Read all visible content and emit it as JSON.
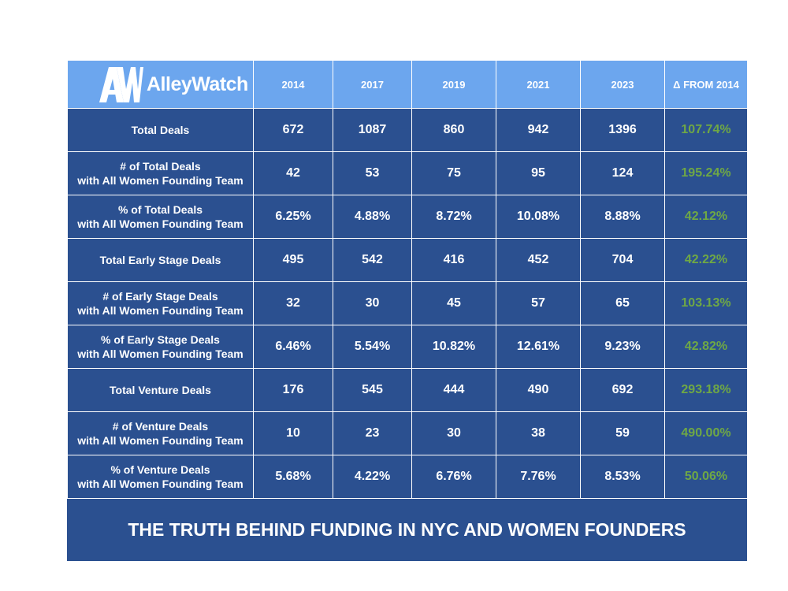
{
  "brand": {
    "logo_monogram": "AW",
    "logo_text": "AlleyWatch"
  },
  "colors": {
    "header_bg": "#6ca6ee",
    "body_bg": "#2b5090",
    "delta_text": "#6fa845",
    "text": "#ffffff"
  },
  "chart_data": {
    "type": "table",
    "title": "THE TRUTH BEHIND FUNDING IN NYC AND WOMEN FOUNDERS",
    "columns": [
      "2014",
      "2017",
      "2019",
      "2021",
      "2023",
      "Δ FROM 2014"
    ],
    "rows": [
      {
        "label_lines": [
          "Total Deals"
        ],
        "values": [
          "672",
          "1087",
          "860",
          "942",
          "1396"
        ],
        "delta": "107.74%"
      },
      {
        "label_lines": [
          "# of Total Deals",
          "with All Women Founding Team"
        ],
        "values": [
          "42",
          "53",
          "75",
          "95",
          "124"
        ],
        "delta": "195.24%"
      },
      {
        "label_lines": [
          "% of Total Deals",
          "with All Women Founding Team"
        ],
        "values": [
          "6.25%",
          "4.88%",
          "8.72%",
          "10.08%",
          "8.88%"
        ],
        "delta": "42.12%"
      },
      {
        "label_lines": [
          "Total Early Stage Deals"
        ],
        "values": [
          "495",
          "542",
          "416",
          "452",
          "704"
        ],
        "delta": "42.22%"
      },
      {
        "label_lines": [
          "# of Early Stage Deals",
          "with All Women Founding Team"
        ],
        "values": [
          "32",
          "30",
          "45",
          "57",
          "65"
        ],
        "delta": "103.13%"
      },
      {
        "label_lines": [
          "% of Early Stage Deals",
          "with All Women Founding Team"
        ],
        "values": [
          "6.46%",
          "5.54%",
          "10.82%",
          "12.61%",
          "9.23%"
        ],
        "delta": "42.82%"
      },
      {
        "label_lines": [
          "Total Venture Deals"
        ],
        "values": [
          "176",
          "545",
          "444",
          "490",
          "692"
        ],
        "delta": "293.18%"
      },
      {
        "label_lines": [
          "# of Venture Deals",
          "with All Women Founding Team"
        ],
        "values": [
          "10",
          "23",
          "30",
          "38",
          "59"
        ],
        "delta": "490.00%"
      },
      {
        "label_lines": [
          "% of Venture Deals",
          "with All Women Founding Team"
        ],
        "values": [
          "5.68%",
          "4.22%",
          "6.76%",
          "7.76%",
          "8.53%"
        ],
        "delta": "50.06%"
      }
    ]
  }
}
